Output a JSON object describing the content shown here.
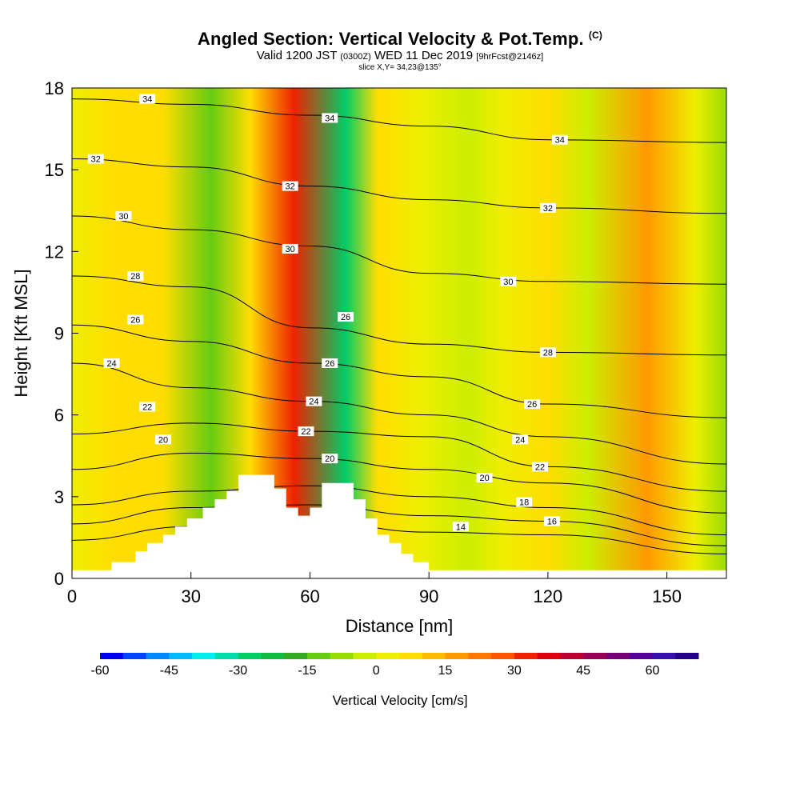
{
  "header": {
    "title": "Angled Section: Vertical Velocity & Pot.Temp.",
    "title_tag": "(C)",
    "valid_prefix": "Valid 1200 JST",
    "valid_utc": "(0300Z)",
    "valid_date": "WED 11 Dec 2019",
    "forecast": "[9hrFcst@2146z]",
    "slice": "slice X,Y= 34,23@135°"
  },
  "chart_data": {
    "type": "heatmap",
    "xlabel": "Distance [nm]",
    "ylabel": "Height [Kft MSL]",
    "xlim": [
      0,
      165
    ],
    "ylim": [
      0,
      18
    ],
    "x_ticks": [
      0,
      30,
      60,
      90,
      120,
      150
    ],
    "y_ticks": [
      0,
      3,
      6,
      9,
      12,
      15,
      18
    ],
    "grid": false,
    "filled_field": "Vertical Velocity [cm/s]",
    "velocity_bands": [
      {
        "x": 0,
        "w": 3
      },
      {
        "x": 11,
        "w": 5
      },
      {
        "x": 15,
        "w": 6
      },
      {
        "x": 23,
        "w": 5
      },
      {
        "x": 35,
        "w": -14
      },
      {
        "x": 45,
        "w": 6
      },
      {
        "x": 56,
        "w": 30
      },
      {
        "x": 69,
        "w": -26
      },
      {
        "x": 77,
        "w": 5
      },
      {
        "x": 88,
        "w": 4
      },
      {
        "x": 100,
        "w": -4
      },
      {
        "x": 108,
        "w": 3
      },
      {
        "x": 120,
        "w": 6
      },
      {
        "x": 130,
        "w": -2
      },
      {
        "x": 145,
        "w": 18
      },
      {
        "x": 157,
        "w": 3
      },
      {
        "x": 165,
        "w": -6
      }
    ],
    "terrain": [
      [
        0,
        0.3
      ],
      [
        10,
        0.6
      ],
      [
        16,
        1.0
      ],
      [
        19,
        1.3
      ],
      [
        23,
        1.6
      ],
      [
        26,
        1.9
      ],
      [
        29,
        2.2
      ],
      [
        33,
        2.6
      ],
      [
        36,
        2.9
      ],
      [
        39,
        3.2
      ],
      [
        42,
        3.8
      ],
      [
        47,
        3.8
      ],
      [
        51,
        3.3
      ],
      [
        54,
        2.6
      ],
      [
        57,
        2.3
      ],
      [
        60,
        2.6
      ],
      [
        63,
        3.5
      ],
      [
        68,
        3.5
      ],
      [
        71,
        2.9
      ],
      [
        74,
        2.2
      ],
      [
        77,
        1.6
      ],
      [
        80,
        1.3
      ],
      [
        83,
        0.9
      ],
      [
        86,
        0.6
      ],
      [
        90,
        0.3
      ],
      [
        165,
        0.0
      ]
    ],
    "theta_contours": [
      {
        "level": 14,
        "points": [
          [
            0,
            1.4
          ],
          [
            30,
            1.9
          ],
          [
            60,
            2.1
          ],
          [
            90,
            1.7
          ],
          [
            120,
            1.6
          ],
          [
            165,
            0.9
          ]
        ]
      },
      {
        "level": 16,
        "points": [
          [
            0,
            2.0
          ],
          [
            30,
            2.6
          ],
          [
            60,
            2.7
          ],
          [
            90,
            2.3
          ],
          [
            120,
            2.1
          ],
          [
            165,
            1.2
          ]
        ]
      },
      {
        "level": 18,
        "points": [
          [
            0,
            2.7
          ],
          [
            30,
            3.2
          ],
          [
            60,
            3.4
          ],
          [
            90,
            3.0
          ],
          [
            120,
            2.6
          ],
          [
            165,
            1.6
          ]
        ]
      },
      {
        "level": 20,
        "points": [
          [
            0,
            4.0
          ],
          [
            30,
            4.6
          ],
          [
            60,
            4.4
          ],
          [
            90,
            4.0
          ],
          [
            120,
            3.5
          ],
          [
            165,
            2.4
          ]
        ]
      },
      {
        "level": 22,
        "points": [
          [
            0,
            5.3
          ],
          [
            30,
            5.7
          ],
          [
            60,
            5.4
          ],
          [
            90,
            5.2
          ],
          [
            120,
            4.1
          ],
          [
            165,
            3.2
          ]
        ]
      },
      {
        "level": 24,
        "points": [
          [
            0,
            7.9
          ],
          [
            30,
            7.0
          ],
          [
            60,
            6.5
          ],
          [
            90,
            6.0
          ],
          [
            120,
            5.2
          ],
          [
            165,
            4.2
          ]
        ]
      },
      {
        "level": 26,
        "points": [
          [
            0,
            9.3
          ],
          [
            30,
            8.7
          ],
          [
            60,
            7.9
          ],
          [
            90,
            7.4
          ],
          [
            120,
            6.4
          ],
          [
            165,
            5.9
          ]
        ]
      },
      {
        "level": 28,
        "points": [
          [
            0,
            11.1
          ],
          [
            30,
            10.7
          ],
          [
            60,
            9.2
          ],
          [
            90,
            8.6
          ],
          [
            120,
            8.3
          ],
          [
            165,
            8.2
          ]
        ]
      },
      {
        "level": 30,
        "points": [
          [
            0,
            13.3
          ],
          [
            30,
            12.8
          ],
          [
            60,
            12.2
          ],
          [
            90,
            11.2
          ],
          [
            120,
            10.9
          ],
          [
            165,
            10.8
          ]
        ]
      },
      {
        "level": 32,
        "points": [
          [
            0,
            15.4
          ],
          [
            30,
            15.1
          ],
          [
            60,
            14.4
          ],
          [
            90,
            13.9
          ],
          [
            120,
            13.6
          ],
          [
            165,
            13.4
          ]
        ]
      },
      {
        "level": 34,
        "points": [
          [
            0,
            17.6
          ],
          [
            30,
            17.4
          ],
          [
            60,
            17.0
          ],
          [
            90,
            16.6
          ],
          [
            120,
            16.1
          ],
          [
            165,
            16.0
          ]
        ]
      }
    ],
    "contour_labels": [
      {
        "text": "14",
        "x": 98,
        "y": 1.9
      },
      {
        "text": "16",
        "x": 121,
        "y": 2.1
      },
      {
        "text": "18",
        "x": 114,
        "y": 2.8
      },
      {
        "text": "20",
        "x": 104,
        "y": 3.7
      },
      {
        "text": "20",
        "x": 65,
        "y": 4.4
      },
      {
        "text": "20",
        "x": 23,
        "y": 5.1
      },
      {
        "text": "22",
        "x": 118,
        "y": 4.1
      },
      {
        "text": "22",
        "x": 59,
        "y": 5.4
      },
      {
        "text": "22",
        "x": 19,
        "y": 6.3
      },
      {
        "text": "24",
        "x": 113,
        "y": 5.1
      },
      {
        "text": "24",
        "x": 61,
        "y": 6.5
      },
      {
        "text": "24",
        "x": 10,
        "y": 7.9
      },
      {
        "text": "26",
        "x": 116,
        "y": 6.4
      },
      {
        "text": "26",
        "x": 65,
        "y": 7.9
      },
      {
        "text": "26",
        "x": 16,
        "y": 9.5
      },
      {
        "text": "26",
        "x": 69,
        "y": 9.6
      },
      {
        "text": "28",
        "x": 120,
        "y": 8.3
      },
      {
        "text": "28",
        "x": 16,
        "y": 11.1
      },
      {
        "text": "30",
        "x": 110,
        "y": 10.9
      },
      {
        "text": "30",
        "x": 55,
        "y": 12.1
      },
      {
        "text": "30",
        "x": 13,
        "y": 13.3
      },
      {
        "text": "32",
        "x": 120,
        "y": 13.6
      },
      {
        "text": "32",
        "x": 55,
        "y": 14.4
      },
      {
        "text": "32",
        "x": 6,
        "y": 15.4
      },
      {
        "text": "34",
        "x": 123,
        "y": 16.1
      },
      {
        "text": "34",
        "x": 65,
        "y": 16.9
      },
      {
        "text": "34",
        "x": 19,
        "y": 17.6
      }
    ],
    "colorbar": {
      "title": "Vertical Velocity [cm/s]",
      "min": -60,
      "max": 70,
      "step": 5,
      "tick_labels": [
        "-60",
        "-45",
        "-30",
        "-15",
        "0",
        "15",
        "30",
        "45",
        "60"
      ],
      "colors": [
        "#0000ee",
        "#0044ff",
        "#0088ff",
        "#00bbff",
        "#00eeee",
        "#00ddaa",
        "#00cc66",
        "#11bb44",
        "#33aa22",
        "#66cc11",
        "#99dd00",
        "#ccee00",
        "#eeee00",
        "#ffdd00",
        "#ffbb00",
        "#ff9900",
        "#ff7700",
        "#ff5500",
        "#ee2200",
        "#dd0011",
        "#bb0033",
        "#990055",
        "#770077",
        "#550099",
        "#3311aa",
        "#220088"
      ]
    }
  }
}
